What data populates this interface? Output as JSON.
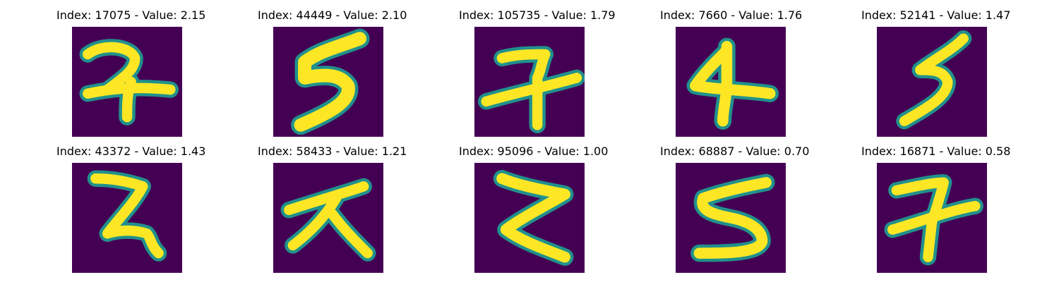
{
  "colors": {
    "background": "#440154",
    "edge": "#21918c",
    "stroke": "#fde725"
  },
  "panels": [
    {
      "title": "Index: 17075 - Value: 2.15",
      "digit_icon": "digit-7-icon"
    },
    {
      "title": "Index: 44449 - Value: 2.10",
      "digit_icon": "digit-5-icon"
    },
    {
      "title": "Index: 105735 - Value: 1.79",
      "digit_icon": "digit-7-crossed-icon"
    },
    {
      "title": "Index: 7660 - Value: 1.76",
      "digit_icon": "digit-4-icon"
    },
    {
      "title": "Index: 52141 - Value: 1.47",
      "digit_icon": "digit-5-slanted-icon"
    },
    {
      "title": "Index: 43372 - Value: 1.43",
      "digit_icon": "digit-2-icon"
    },
    {
      "title": "Index: 58433 - Value: 1.21",
      "digit_icon": "digit-x-like-icon"
    },
    {
      "title": "Index: 95096 - Value: 1.00",
      "digit_icon": "digit-z-like-icon"
    },
    {
      "title": "Index: 68887 - Value: 0.70",
      "digit_icon": "digit-5-icon"
    },
    {
      "title": "Index: 16871 - Value: 0.58",
      "digit_icon": "digit-7-crossed-icon"
    }
  ]
}
